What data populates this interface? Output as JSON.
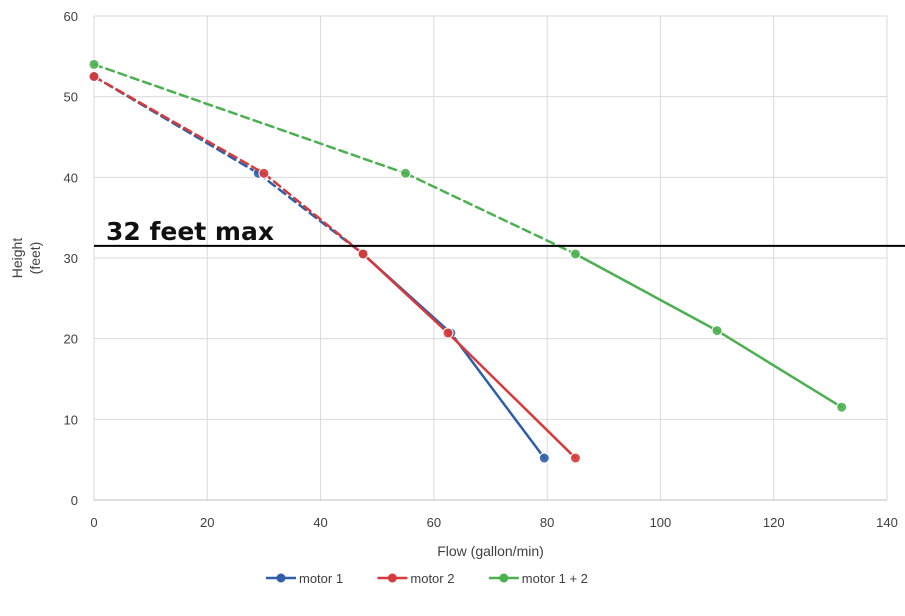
{
  "chart_data": {
    "type": "line",
    "title": "",
    "xlabel": "Flow (gallon/min)",
    "ylabel": "Height",
    "ylabel_unit": "(feet)",
    "xlim": [
      0,
      140
    ],
    "ylim": [
      0,
      60
    ],
    "xticks": [
      0,
      20,
      40,
      60,
      80,
      100,
      120,
      140
    ],
    "yticks": [
      0,
      10,
      20,
      30,
      40,
      50,
      60
    ],
    "grid": true,
    "legend_position": "bottom",
    "series": [
      {
        "name": "motor 1",
        "color": "#2e5fa8",
        "points": [
          [
            0,
            52.5
          ],
          [
            29,
            40.5
          ],
          [
            47.5,
            30.5
          ],
          [
            63,
            20.7
          ],
          [
            79.5,
            5.2
          ]
        ],
        "dashed_through_x": 47.5
      },
      {
        "name": "motor 2",
        "color": "#d63a3a",
        "points": [
          [
            0,
            52.5
          ],
          [
            30,
            40.5
          ],
          [
            47.5,
            30.5
          ],
          [
            62.5,
            20.7
          ],
          [
            85,
            5.2
          ]
        ],
        "dashed_through_x": 47.5
      },
      {
        "name": "motor 1 + 2",
        "color": "#4cb050",
        "points": [
          [
            0,
            54
          ],
          [
            55,
            40.5
          ],
          [
            85,
            30.5
          ],
          [
            110,
            21
          ],
          [
            132,
            11.5
          ]
        ],
        "dashed_through_x": 85
      }
    ],
    "reference_line": {
      "y": 31.5,
      "label": "32 feet max",
      "color": "#000000"
    }
  }
}
